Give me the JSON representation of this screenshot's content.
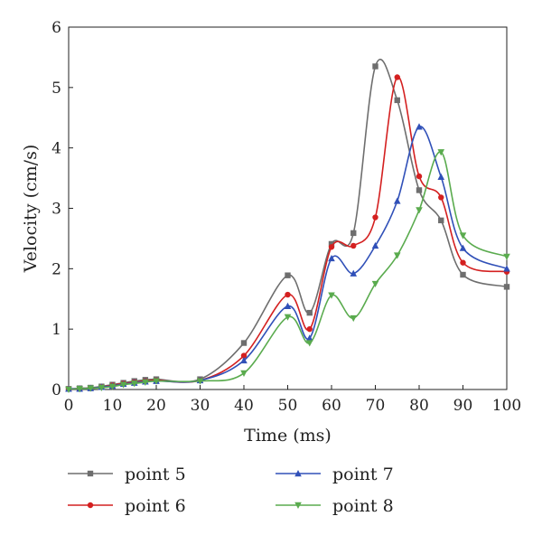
{
  "chart_data": {
    "type": "line",
    "title": "",
    "xlabel": "Time (ms)",
    "ylabel": "Velocity (cm/s)",
    "xlim": [
      0,
      100
    ],
    "ylim": [
      0,
      6
    ],
    "xticks": [
      0,
      10,
      20,
      30,
      40,
      50,
      60,
      70,
      80,
      90,
      100
    ],
    "yticks": [
      0,
      1,
      2,
      3,
      4,
      5,
      6
    ],
    "grid": false,
    "legend_position": "bottom",
    "series": [
      {
        "name": "point 5",
        "color": "#6e6e6e",
        "marker": "square",
        "x": [
          0,
          2.5,
          5,
          7.5,
          10,
          12.5,
          15,
          17.5,
          20,
          30,
          40,
          50,
          55,
          60,
          65,
          70,
          75,
          80,
          85,
          90,
          100
        ],
        "y": [
          0.01,
          0.02,
          0.03,
          0.05,
          0.08,
          0.11,
          0.14,
          0.16,
          0.17,
          0.17,
          0.77,
          1.89,
          1.27,
          2.41,
          2.59,
          5.35,
          4.79,
          3.3,
          2.8,
          1.9,
          1.7
        ]
      },
      {
        "name": "point 6",
        "color": "#d42020",
        "marker": "circle",
        "x": [
          0,
          2.5,
          5,
          7.5,
          10,
          12.5,
          15,
          17.5,
          20,
          30,
          40,
          50,
          55,
          60,
          65,
          70,
          75,
          80,
          85,
          90,
          100
        ],
        "y": [
          0.01,
          0.01,
          0.02,
          0.04,
          0.07,
          0.1,
          0.12,
          0.14,
          0.15,
          0.15,
          0.56,
          1.57,
          1.0,
          2.36,
          2.38,
          2.85,
          5.17,
          3.53,
          3.18,
          2.1,
          1.95
        ]
      },
      {
        "name": "point 7",
        "color": "#3050b8",
        "marker": "triangle-up",
        "x": [
          0,
          2.5,
          5,
          7.5,
          10,
          12.5,
          15,
          17.5,
          20,
          30,
          40,
          50,
          55,
          60,
          65,
          70,
          75,
          80,
          85,
          90,
          100
        ],
        "y": [
          0.01,
          0.01,
          0.02,
          0.04,
          0.06,
          0.09,
          0.11,
          0.13,
          0.14,
          0.15,
          0.48,
          1.38,
          0.85,
          2.17,
          1.92,
          2.38,
          3.12,
          4.35,
          3.52,
          2.34,
          2.0
        ]
      },
      {
        "name": "point 8",
        "color": "#5aab4e",
        "marker": "triangle-down",
        "x": [
          0,
          2.5,
          5,
          7.5,
          10,
          12.5,
          15,
          17.5,
          20,
          30,
          40,
          50,
          55,
          60,
          65,
          70,
          75,
          80,
          85,
          90,
          100
        ],
        "y": [
          0.0,
          0.01,
          0.02,
          0.03,
          0.05,
          0.08,
          0.1,
          0.12,
          0.14,
          0.14,
          0.27,
          1.2,
          0.77,
          1.56,
          1.18,
          1.75,
          2.22,
          2.97,
          3.93,
          2.55,
          2.2
        ]
      }
    ]
  }
}
